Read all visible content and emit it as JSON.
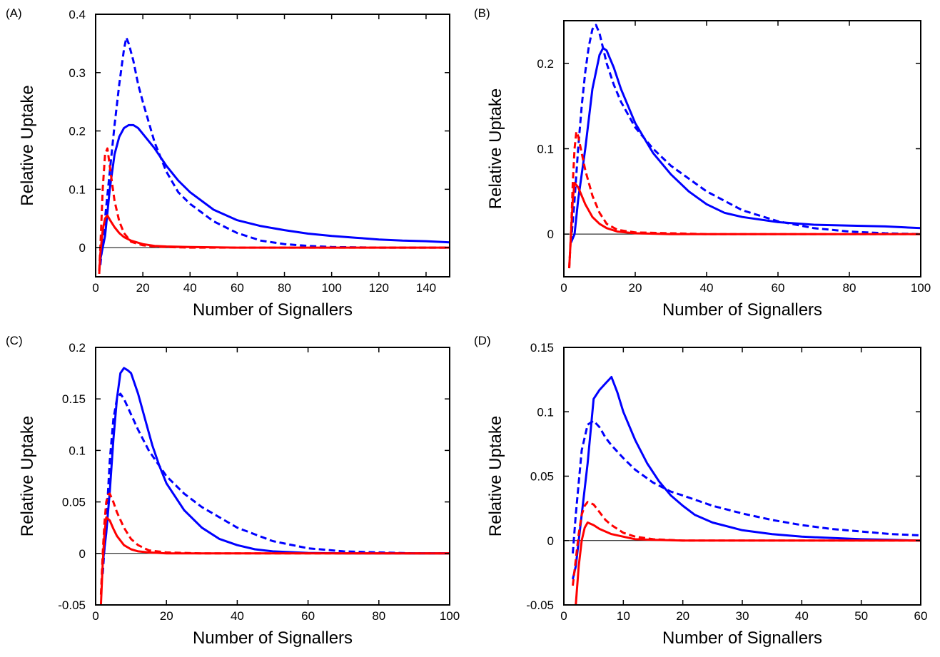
{
  "chart_data": [
    {
      "panel": "(A)",
      "type": "line",
      "xlabel": "Number of Signallers",
      "ylabel": "Relative Uptake",
      "xlim": [
        0,
        150
      ],
      "ylim": [
        -0.05,
        0.4
      ],
      "xticks": [
        0,
        20,
        40,
        60,
        80,
        100,
        120,
        140
      ],
      "yticks": [
        0,
        0.1,
        0.2,
        0.3,
        0.4
      ],
      "ytick_labels": [
        "0",
        "0.1",
        "0.2",
        "0.3",
        "0.4"
      ],
      "zero_line": true,
      "grid": false,
      "series": [
        {
          "color": "#0000ff",
          "style": "solid",
          "x": [
            2,
            4,
            6,
            8,
            10,
            12,
            14,
            16,
            18,
            20,
            25,
            30,
            35,
            40,
            50,
            60,
            70,
            80,
            90,
            100,
            110,
            120,
            130,
            140,
            150
          ],
          "y": [
            -0.02,
            0.02,
            0.1,
            0.16,
            0.19,
            0.205,
            0.21,
            0.21,
            0.205,
            0.195,
            0.17,
            0.14,
            0.115,
            0.095,
            0.065,
            0.047,
            0.037,
            0.03,
            0.024,
            0.02,
            0.017,
            0.014,
            0.012,
            0.011,
            0.009
          ]
        },
        {
          "color": "#0000ff",
          "style": "dashed",
          "x": [
            2,
            4,
            6,
            8,
            10,
            12,
            13,
            14,
            16,
            18,
            20,
            25,
            30,
            35,
            40,
            45,
            50,
            60,
            70,
            80,
            90,
            100,
            120,
            150
          ],
          "y": [
            -0.03,
            0.05,
            0.13,
            0.21,
            0.28,
            0.34,
            0.36,
            0.35,
            0.32,
            0.28,
            0.25,
            0.18,
            0.13,
            0.095,
            0.075,
            0.06,
            0.045,
            0.025,
            0.012,
            0.006,
            0.003,
            0.001,
            0.0,
            0.0
          ]
        },
        {
          "color": "#ff0000",
          "style": "solid",
          "x": [
            1.5,
            2,
            3,
            4,
            5,
            6,
            8,
            10,
            12,
            15,
            20,
            25,
            30,
            40,
            60,
            80,
            100,
            150
          ],
          "y": [
            -0.045,
            -0.01,
            0.03,
            0.05,
            0.055,
            0.048,
            0.035,
            0.025,
            0.018,
            0.012,
            0.006,
            0.003,
            0.002,
            0.001,
            0.0,
            0.0,
            0.0,
            0.0
          ]
        },
        {
          "color": "#ff0000",
          "style": "dashed",
          "x": [
            1.5,
            2,
            3,
            4,
            5,
            6,
            7,
            8,
            10,
            12,
            15,
            20,
            25,
            30,
            40,
            60,
            100,
            150
          ],
          "y": [
            -0.04,
            0.0,
            0.1,
            0.16,
            0.17,
            0.14,
            0.11,
            0.08,
            0.045,
            0.025,
            0.01,
            0.004,
            0.002,
            0.001,
            0.0,
            0.0,
            0.0,
            0.0
          ]
        }
      ]
    },
    {
      "panel": "(B)",
      "type": "line",
      "xlabel": "Number of Signallers",
      "ylabel": "Relative Uptake",
      "xlim": [
        0,
        100
      ],
      "ylim": [
        -0.05,
        0.25
      ],
      "xticks": [
        0,
        20,
        40,
        60,
        80,
        100
      ],
      "yticks": [
        0,
        0.1,
        0.2
      ],
      "ytick_labels": [
        "0",
        "0.1",
        "0.2"
      ],
      "zero_line": true,
      "grid": false,
      "series": [
        {
          "color": "#0000ff",
          "style": "solid",
          "x": [
            2,
            3,
            4,
            6,
            8,
            10,
            11,
            12,
            14,
            16,
            20,
            25,
            30,
            35,
            40,
            45,
            50,
            60,
            70,
            80,
            90,
            100
          ],
          "y": [
            -0.01,
            0.0,
            0.04,
            0.1,
            0.17,
            0.21,
            0.218,
            0.215,
            0.195,
            0.17,
            0.13,
            0.095,
            0.07,
            0.05,
            0.035,
            0.025,
            0.02,
            0.014,
            0.011,
            0.01,
            0.009,
            0.007
          ]
        },
        {
          "color": "#0000ff",
          "style": "dashed",
          "x": [
            2,
            3,
            4,
            5,
            6,
            7,
            8,
            9,
            10,
            12,
            14,
            16,
            20,
            25,
            30,
            40,
            50,
            60,
            70,
            80,
            90,
            100
          ],
          "y": [
            -0.01,
            0.04,
            0.1,
            0.15,
            0.19,
            0.22,
            0.24,
            0.245,
            0.235,
            0.2,
            0.175,
            0.155,
            0.125,
            0.1,
            0.08,
            0.05,
            0.028,
            0.015,
            0.007,
            0.003,
            0.001,
            0.0
          ]
        },
        {
          "color": "#ff0000",
          "style": "solid",
          "x": [
            1.5,
            2,
            2.5,
            3,
            4,
            5,
            6,
            8,
            10,
            12,
            15,
            20,
            30,
            40,
            60,
            80,
            100
          ],
          "y": [
            -0.04,
            0.0,
            0.04,
            0.06,
            0.055,
            0.045,
            0.035,
            0.02,
            0.012,
            0.007,
            0.003,
            0.001,
            0.0,
            0.0,
            0.0,
            0.0,
            0.0
          ]
        },
        {
          "color": "#ff0000",
          "style": "dashed",
          "x": [
            1.5,
            2,
            2.5,
            3,
            3.5,
            4,
            5,
            6,
            8,
            10,
            12,
            15,
            20,
            30,
            40,
            60,
            80,
            100
          ],
          "y": [
            -0.04,
            0.0,
            0.06,
            0.1,
            0.12,
            0.115,
            0.095,
            0.075,
            0.045,
            0.025,
            0.012,
            0.005,
            0.002,
            0.001,
            0.0,
            0.0,
            0.0,
            0.0
          ]
        }
      ]
    },
    {
      "panel": "(C)",
      "type": "line",
      "xlabel": "Number of Signallers",
      "ylabel": "Relative Uptake",
      "xlim": [
        0,
        100
      ],
      "ylim": [
        -0.05,
        0.2
      ],
      "xticks": [
        0,
        20,
        40,
        60,
        80,
        100
      ],
      "yticks": [
        -0.05,
        0,
        0.05,
        0.1,
        0.15,
        0.2
      ],
      "ytick_labels": [
        "-0.05",
        "0",
        "0.05",
        "0.1",
        "0.15",
        "0.2"
      ],
      "zero_line": true,
      "grid": false,
      "series": [
        {
          "color": "#0000ff",
          "style": "solid",
          "x": [
            2,
            3,
            4,
            5,
            6,
            7,
            8,
            9,
            10,
            12,
            14,
            16,
            18,
            20,
            25,
            30,
            35,
            40,
            45,
            50,
            60,
            70,
            80,
            100
          ],
          "y": [
            -0.01,
            0.02,
            0.06,
            0.11,
            0.15,
            0.175,
            0.18,
            0.178,
            0.175,
            0.155,
            0.13,
            0.105,
            0.085,
            0.068,
            0.042,
            0.025,
            0.014,
            0.008,
            0.004,
            0.002,
            0.0005,
            0.0,
            0.0,
            0.0
          ]
        },
        {
          "color": "#0000ff",
          "style": "dashed",
          "x": [
            2,
            3,
            4,
            5,
            6,
            7,
            8,
            10,
            12,
            15,
            20,
            25,
            30,
            40,
            50,
            60,
            70,
            80,
            90,
            100
          ],
          "y": [
            -0.02,
            0.03,
            0.09,
            0.13,
            0.15,
            0.155,
            0.15,
            0.135,
            0.12,
            0.1,
            0.075,
            0.058,
            0.045,
            0.025,
            0.012,
            0.005,
            0.002,
            0.001,
            0.0,
            0.0
          ]
        },
        {
          "color": "#ff0000",
          "style": "solid",
          "x": [
            1.5,
            2,
            2.5,
            3,
            4,
            5,
            6,
            8,
            10,
            12,
            15,
            20,
            30,
            50,
            100
          ],
          "y": [
            -0.05,
            -0.01,
            0.02,
            0.035,
            0.032,
            0.024,
            0.017,
            0.008,
            0.004,
            0.002,
            0.001,
            0.0,
            0.0,
            0.0,
            0.0
          ]
        },
        {
          "color": "#ff0000",
          "style": "dashed",
          "x": [
            1.5,
            2,
            2.5,
            3,
            3.5,
            4,
            5,
            6,
            8,
            10,
            12,
            15,
            20,
            30,
            50,
            100
          ],
          "y": [
            -0.04,
            0.0,
            0.03,
            0.05,
            0.057,
            0.058,
            0.05,
            0.04,
            0.025,
            0.014,
            0.008,
            0.003,
            0.001,
            0.0,
            0.0,
            0.0
          ]
        }
      ]
    },
    {
      "panel": "(D)",
      "type": "line",
      "xlabel": "Number of Signallers",
      "ylabel": "Relative Uptake",
      "xlim": [
        0,
        60
      ],
      "ylim": [
        -0.05,
        0.15
      ],
      "xticks": [
        0,
        10,
        20,
        30,
        40,
        50,
        60
      ],
      "yticks": [
        -0.05,
        0,
        0.05,
        0.1,
        0.15
      ],
      "ytick_labels": [
        "-0.05",
        "0",
        "0.05",
        "0.1",
        "0.15"
      ],
      "zero_line": true,
      "grid": false,
      "series": [
        {
          "color": "#0000ff",
          "style": "solid",
          "x": [
            1.5,
            2,
            3,
            4,
            5,
            6,
            7,
            8,
            9,
            10,
            12,
            14,
            16,
            18,
            20,
            22,
            25,
            30,
            35,
            40,
            45,
            50,
            55,
            60
          ],
          "y": [
            -0.03,
            -0.02,
            0.02,
            0.06,
            0.11,
            0.117,
            0.122,
            0.127,
            0.115,
            0.1,
            0.078,
            0.06,
            0.046,
            0.035,
            0.027,
            0.02,
            0.014,
            0.008,
            0.005,
            0.003,
            0.002,
            0.001,
            0.0005,
            0.0
          ]
        },
        {
          "color": "#0000ff",
          "style": "dashed",
          "x": [
            1.5,
            2,
            3,
            4,
            5,
            6,
            7,
            8,
            10,
            12,
            15,
            18,
            20,
            25,
            30,
            35,
            40,
            45,
            50,
            55,
            60
          ],
          "y": [
            -0.01,
            0.02,
            0.07,
            0.09,
            0.093,
            0.088,
            0.08,
            0.074,
            0.064,
            0.055,
            0.045,
            0.038,
            0.035,
            0.027,
            0.021,
            0.016,
            0.012,
            0.009,
            0.007,
            0.005,
            0.004
          ]
        },
        {
          "color": "#ff0000",
          "style": "solid",
          "x": [
            2,
            2.5,
            3,
            3.5,
            4,
            5,
            6,
            8,
            10,
            12,
            15,
            20,
            30,
            40,
            60
          ],
          "y": [
            -0.05,
            -0.02,
            0.0,
            0.01,
            0.014,
            0.012,
            0.009,
            0.005,
            0.003,
            0.001,
            0.0005,
            0.0,
            0.0,
            0.0,
            0.0
          ]
        },
        {
          "color": "#ff0000",
          "style": "dashed",
          "x": [
            1.5,
            2,
            2.5,
            3,
            3.5,
            4,
            5,
            6,
            7,
            8,
            10,
            12,
            15,
            20,
            30,
            60
          ],
          "y": [
            -0.035,
            -0.015,
            0.005,
            0.02,
            0.027,
            0.03,
            0.028,
            0.022,
            0.016,
            0.012,
            0.006,
            0.003,
            0.001,
            0.0,
            0.0,
            0.0
          ]
        }
      ]
    }
  ]
}
